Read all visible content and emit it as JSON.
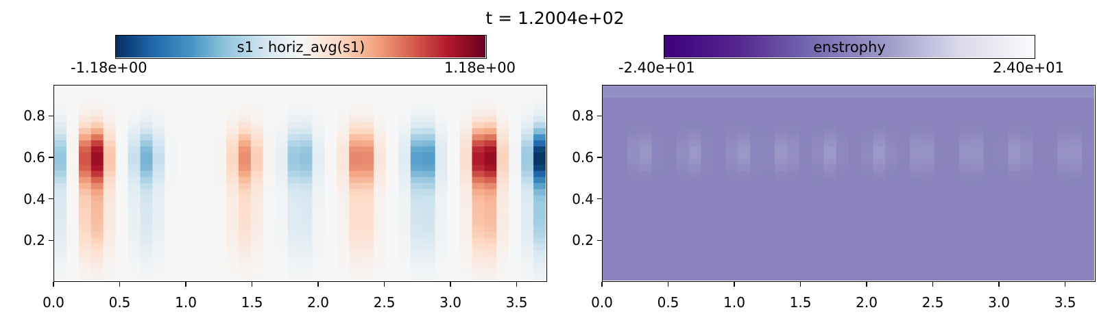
{
  "title": "t = 1.2004e+02",
  "chart_data": [
    {
      "type": "heatmap",
      "colorbar_label": "s1 - horiz_avg(s1)",
      "colormap": "RdBu_r",
      "vmin_label": "-1.18e+00",
      "vmax_label": "1.18e+00",
      "vlim": [
        -1.18,
        1.18
      ],
      "xlim": [
        0.0,
        3.73
      ],
      "ylim": [
        0.0,
        0.95
      ],
      "xticks": [
        "0.0",
        "0.5",
        "1.0",
        "1.5",
        "2.0",
        "2.5",
        "3.0",
        "3.5"
      ],
      "yticks": [
        "0.2",
        "0.4",
        "0.6",
        "0.8"
      ],
      "grid_cells": [
        40,
        32
      ],
      "column_amplitudes": [
        {
          "x": 0.0,
          "amp": -0.55
        },
        {
          "x": 0.3,
          "amp": 1.08
        },
        {
          "x": 0.7,
          "amp": -0.55
        },
        {
          "x": 1.05,
          "amp": 0.0
        },
        {
          "x": 1.45,
          "amp": 0.55
        },
        {
          "x": 1.87,
          "amp": -0.55
        },
        {
          "x": 2.33,
          "amp": 0.68
        },
        {
          "x": 2.8,
          "amp": -0.78
        },
        {
          "x": 3.27,
          "amp": 1.18
        },
        {
          "x": 3.7,
          "amp": -1.18
        }
      ],
      "peak_y": 0.6
    },
    {
      "type": "heatmap",
      "colorbar_label": "enstrophy",
      "colormap": "Purples_r",
      "vmin_label": "-2.40e+01",
      "vmax_label": "2.40e+01",
      "vlim": [
        -24.0,
        24.0
      ],
      "xlim": [
        0.0,
        3.73
      ],
      "ylim": [
        0.0,
        0.95
      ],
      "xticks": [
        "0.0",
        "0.5",
        "1.0",
        "1.5",
        "2.0",
        "2.5",
        "3.0",
        "3.5"
      ],
      "yticks": [
        "0.2",
        "0.4",
        "0.6",
        "0.8"
      ],
      "grid_cells": [
        40,
        32
      ],
      "baseline": 0.0,
      "blob_centers_x": [
        0.3,
        0.68,
        1.05,
        1.38,
        1.72,
        2.1,
        2.42,
        2.8,
        3.15,
        3.55
      ],
      "blob_strength": 4.5,
      "peak_y": 0.62
    }
  ]
}
